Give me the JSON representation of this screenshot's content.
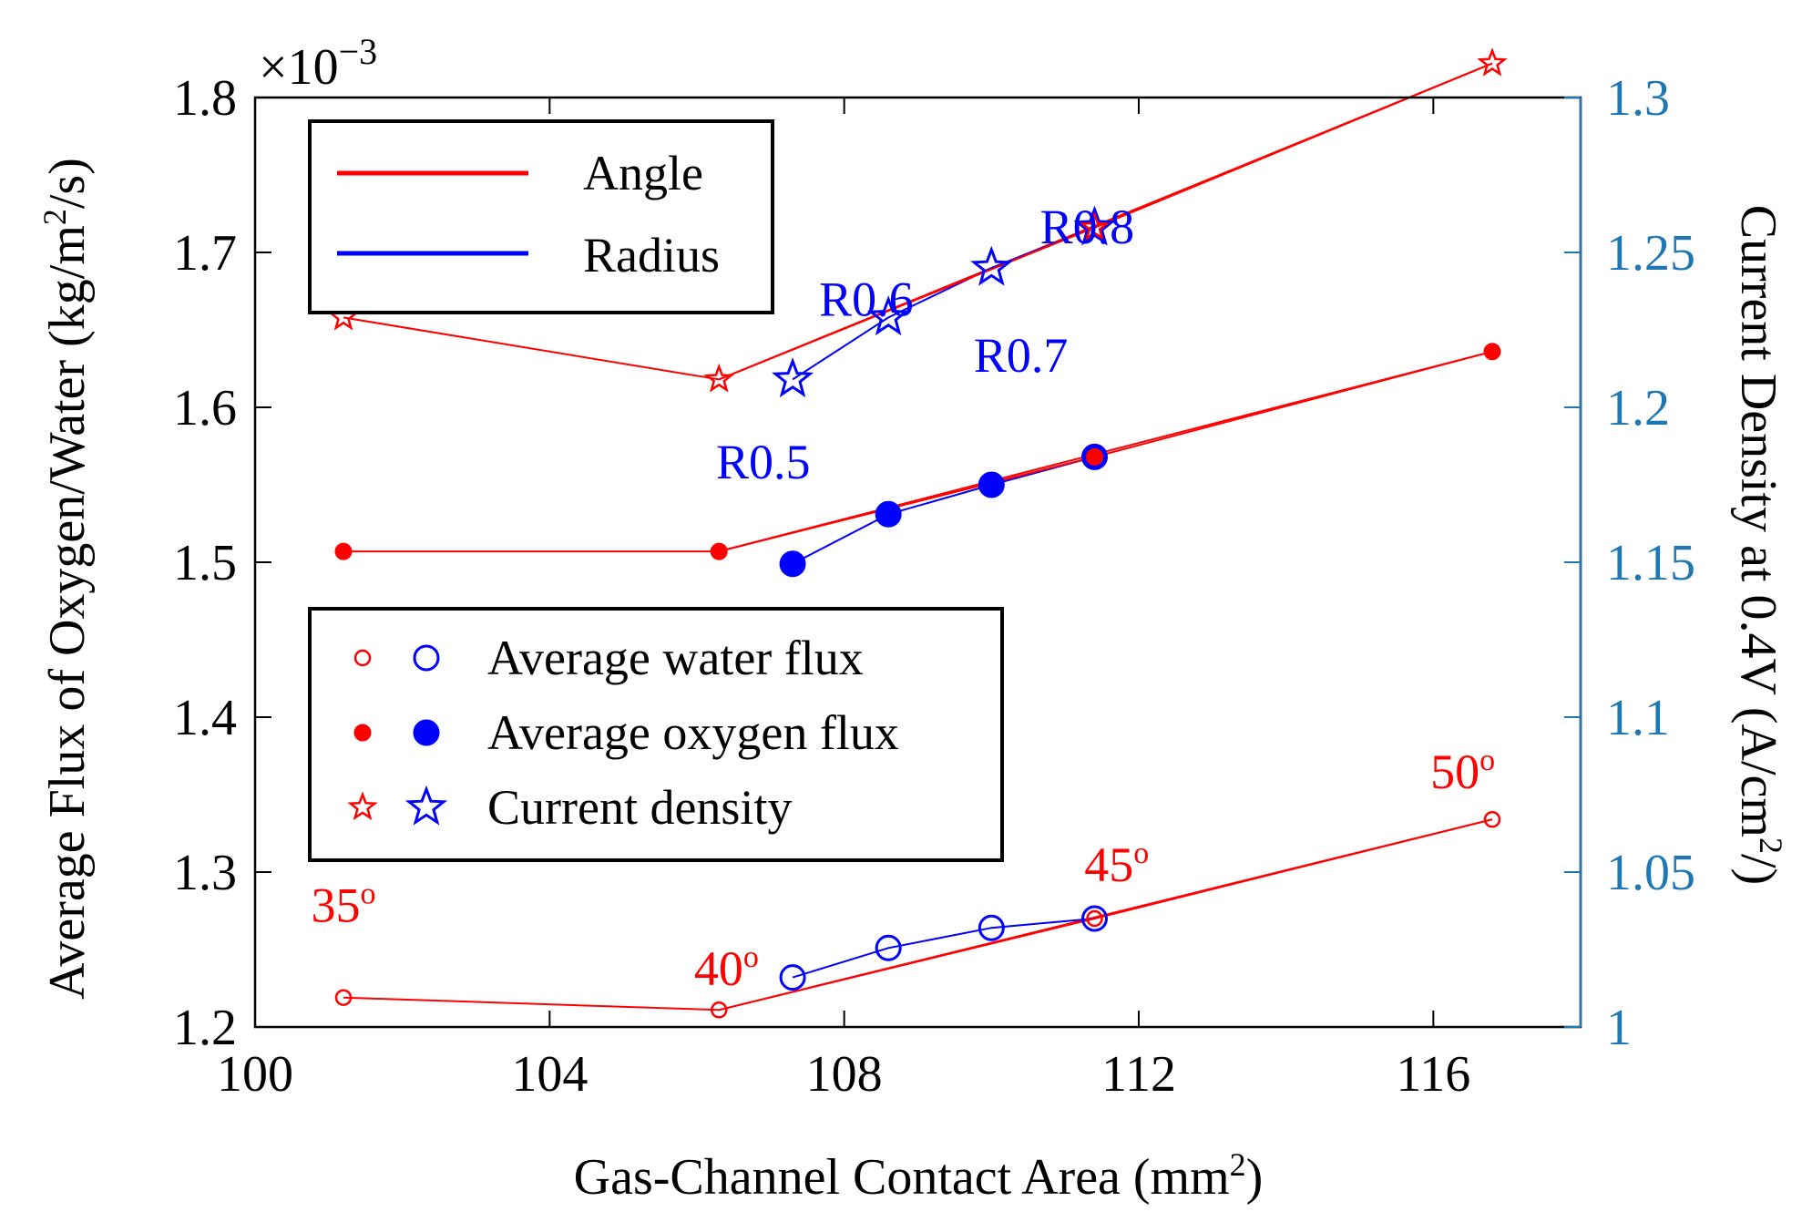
{
  "chart_data": {
    "type": "line",
    "xlabel": "Gas-Channel Contact Area (mm2)",
    "xlabel_parts": {
      "main": "Gas-Channel Contact Area (mm",
      "sup": "2",
      "end": ")"
    },
    "ylabel_left": "Average Flux of Oxygen/Water (kg/m2/s)",
    "ylabel_left_parts": {
      "main": "Average Flux of Oxygen/Water (kg/m",
      "sup": "2",
      "end": "/s)"
    },
    "ylabel_right": "Current Density at 0.4V (A/cm2/)",
    "ylabel_right_parts": {
      "main": "Current Density at 0.4V  (A/cm",
      "sup": "2",
      "end": "/)"
    },
    "exponent_label": {
      "base": "×10",
      "exp": "−3"
    },
    "xlim": [
      100,
      118
    ],
    "ylim_left": [
      1.2,
      1.8
    ],
    "ylim_right": [
      1.0,
      1.3
    ],
    "x_ticks": [
      100,
      104,
      108,
      112,
      116
    ],
    "y_left_ticks": [
      "1.2",
      "1.3",
      "1.4",
      "1.5",
      "1.6",
      "1.7",
      "1.8"
    ],
    "y_right_ticks": [
      "1",
      "1.05",
      "1.1",
      "1.15",
      "1.2",
      "1.25",
      "1.3"
    ],
    "colors": {
      "angle": "#ff0000",
      "radius": "#0000ff",
      "right_axis": "#1f77b4"
    },
    "series": [
      {
        "name": "Angle water flux",
        "group": "angle",
        "axis": "left",
        "marker": "circle-open-small",
        "x": [
          101.2,
          106.3,
          116.8
        ],
        "y": [
          1.219,
          1.211,
          1.334
        ]
      },
      {
        "name": "Angle oxygen flux",
        "group": "angle",
        "axis": "left",
        "marker": "circle-filled-small",
        "x": [
          101.2,
          106.3,
          116.8
        ],
        "y": [
          1.507,
          1.507,
          1.636
        ]
      },
      {
        "name": "Angle current density",
        "group": "angle",
        "axis": "right",
        "marker": "star-small",
        "x": [
          101.2,
          106.3,
          116.8
        ],
        "y": [
          1.229,
          1.209,
          1.311
        ]
      },
      {
        "name": "Radius water flux",
        "group": "radius",
        "axis": "left",
        "marker": "circle-open-large",
        "x": [
          107.3,
          108.6,
          110.0,
          111.4
        ],
        "y": [
          1.232,
          1.251,
          1.264,
          1.27
        ]
      },
      {
        "name": "Radius oxygen flux",
        "group": "radius",
        "axis": "left",
        "marker": "circle-filled-large",
        "x": [
          107.3,
          108.6,
          110.0,
          111.4
        ],
        "y": [
          1.499,
          1.531,
          1.55,
          1.568
        ]
      },
      {
        "name": "Radius current density",
        "group": "radius",
        "axis": "right",
        "marker": "star-large",
        "x": [
          107.3,
          108.6,
          110.0,
          111.4
        ],
        "y": [
          1.209,
          1.229,
          1.245,
          1.258
        ]
      }
    ],
    "angle_overlay_points": [
      {
        "x": 111.4,
        "y": 1.27,
        "marker": "circle-open-small",
        "axis": "left"
      },
      {
        "x": 111.4,
        "y": 1.568,
        "marker": "circle-filled-small",
        "axis": "left"
      },
      {
        "x": 111.4,
        "y": 1.258,
        "marker": "star-small",
        "axis": "right"
      }
    ],
    "annotations": [
      {
        "text": "35",
        "sup": "o",
        "color": "angle",
        "x": 101.2,
        "y": 1.268,
        "axis": "left"
      },
      {
        "text": "40",
        "sup": "o",
        "color": "angle",
        "x": 106.4,
        "y": 1.227,
        "axis": "left"
      },
      {
        "text": "45",
        "sup": "o",
        "color": "angle",
        "x": 111.7,
        "y": 1.294,
        "axis": "left"
      },
      {
        "text": "50",
        "sup": "o",
        "color": "angle",
        "x": 116.4,
        "y": 1.354,
        "axis": "left"
      },
      {
        "text": "R0.5",
        "color": "radius",
        "x": 106.9,
        "y": 1.554,
        "axis": "left"
      },
      {
        "text": "R0.6",
        "color": "radius",
        "x": 108.3,
        "y": 1.659,
        "axis": "left"
      },
      {
        "text": "R0.7",
        "color": "radius",
        "x": 110.4,
        "y": 1.623,
        "axis": "left"
      },
      {
        "text": "R0.8",
        "color": "radius",
        "x": 111.3,
        "y": 1.706,
        "axis": "left"
      }
    ],
    "legend_lines": {
      "position": "top-left",
      "items": [
        {
          "label": "Angle",
          "color": "angle"
        },
        {
          "label": "Radius",
          "color": "radius"
        }
      ]
    },
    "legend_markers": {
      "position": "center-left",
      "items": [
        {
          "label": "Average water flux",
          "marker": "circle-open"
        },
        {
          "label": "Average oxygen flux",
          "marker": "circle-filled"
        },
        {
          "label": "Current density",
          "marker": "star"
        }
      ]
    }
  }
}
